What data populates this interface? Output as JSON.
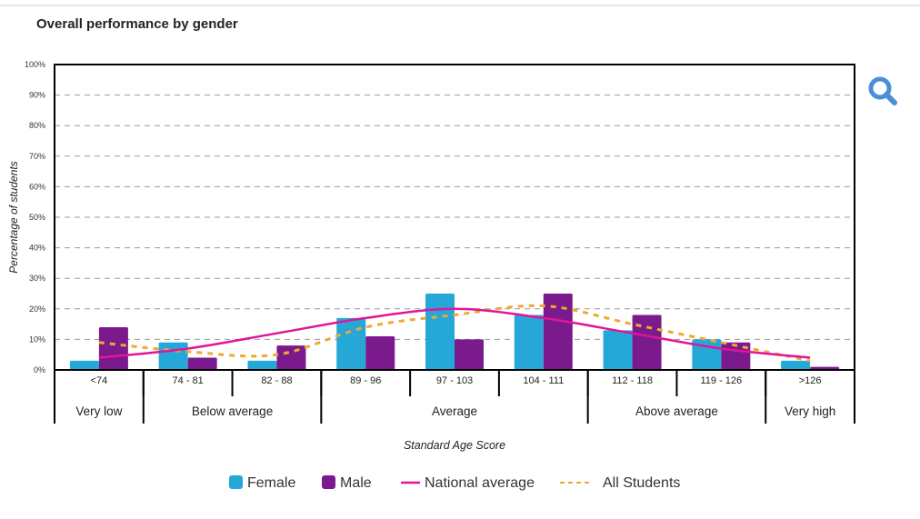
{
  "page": {
    "title": "Overall performance by gender",
    "zoom_icon": "magnifier-icon",
    "zoom_color": "#4a90d9"
  },
  "colors": {
    "female": "#25a8d8",
    "male": "#7a1a8c",
    "national_average": "#e0159a",
    "all_students": "#f0a830",
    "grid": "#999999",
    "axis": "#000000"
  },
  "chart_data": {
    "type": "bar",
    "title": "Overall performance by gender",
    "xlabel": "Standard Age Score",
    "ylabel": "Percentage of students",
    "ylim": [
      0,
      100
    ],
    "yticks": [
      "0%",
      "10%",
      "20%",
      "30%",
      "40%",
      "50%",
      "60%",
      "70%",
      "80%",
      "90%",
      "100%"
    ],
    "grid": true,
    "categories": [
      "<74",
      "74 - 81",
      "82 - 88",
      "89 - 96",
      "97 - 103",
      "104 - 111",
      "112 - 118",
      "119 - 126",
      ">126"
    ],
    "groups": [
      {
        "label": "Very low",
        "span": 1
      },
      {
        "label": "Below average",
        "span": 2
      },
      {
        "label": "Average",
        "span": 3
      },
      {
        "label": "Above average",
        "span": 2
      },
      {
        "label": "Very high",
        "span": 1
      }
    ],
    "series": [
      {
        "name": "Female",
        "kind": "bar",
        "values": [
          3,
          9,
          3,
          17,
          25,
          18,
          13,
          10,
          3
        ]
      },
      {
        "name": "Male",
        "kind": "bar",
        "values": [
          14,
          4,
          8,
          11,
          10,
          25,
          18,
          9,
          1
        ]
      },
      {
        "name": "National average",
        "kind": "line",
        "values": [
          4,
          7,
          12,
          17,
          20,
          17,
          12,
          7,
          4
        ]
      },
      {
        "name": "All Students",
        "kind": "dashed-line",
        "values": [
          9,
          6,
          5,
          14,
          18,
          21,
          15,
          9,
          3
        ]
      }
    ],
    "legend": {
      "position": "bottom",
      "items": [
        "Female",
        "Male",
        "National average",
        "All Students"
      ]
    }
  }
}
